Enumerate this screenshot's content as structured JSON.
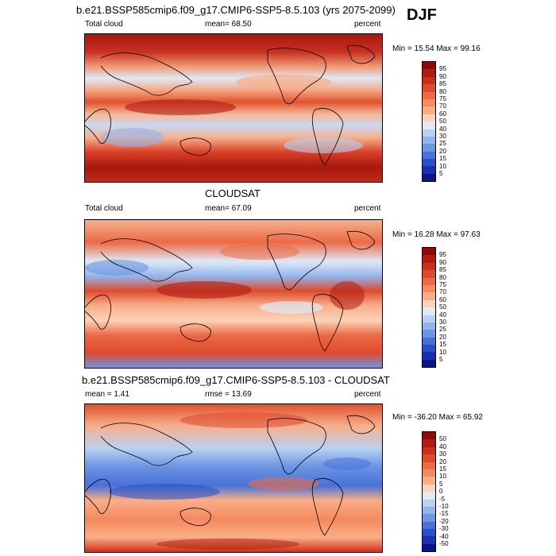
{
  "season": "DJF",
  "panels": [
    {
      "title": "b.e21.BSSP585cmip6.f09_g17.CMIP6-SSP5-8.5.103 (yrs 2075-2099)",
      "left_label": "Total cloud",
      "mean_label": "mean=  68.50",
      "units": "percent",
      "minmax": "Min =  15.54 Max =  99.16",
      "cbar_labels": [
        "95",
        "90",
        "85",
        "80",
        "75",
        "70",
        "60",
        "50",
        "40",
        "30",
        "25",
        "20",
        "15",
        "10",
        "5"
      ],
      "cbar_colors": [
        "#8e0a0a",
        "#b01b10",
        "#cb2f1d",
        "#dd4b2d",
        "#ec6a45",
        "#f5895f",
        "#f9ae88",
        "#fbd3b8",
        "#dfe9f7",
        "#b8d1f1",
        "#93b5ec",
        "#6c95e3",
        "#4872d8",
        "#2a4ec8",
        "#1c2fb0",
        "#0c148c"
      ]
    },
    {
      "title": "CLOUDSAT",
      "left_label": "Total cloud",
      "mean_label": "mean=  67.09",
      "units": "percent",
      "minmax": "Min =  16.28 Max =  97.63",
      "cbar_labels": [
        "95",
        "90",
        "85",
        "80",
        "75",
        "70",
        "60",
        "50",
        "40",
        "30",
        "25",
        "20",
        "15",
        "10",
        "5"
      ],
      "cbar_colors": [
        "#8e0a0a",
        "#b01b10",
        "#cb2f1d",
        "#dd4b2d",
        "#ec6a45",
        "#f5895f",
        "#f9ae88",
        "#fbd3b8",
        "#dfe9f7",
        "#b8d1f1",
        "#93b5ec",
        "#6c95e3",
        "#4872d8",
        "#2a4ec8",
        "#1c2fb0",
        "#0c148c"
      ]
    },
    {
      "title": "b.e21.BSSP585cmip6.f09_g17.CMIP6-SSP5-8.5.103 - CLOUDSAT",
      "left_label": "mean =   1.41",
      "mean_label": "rmse =  13.69",
      "units": "percent",
      "minmax": "Min = -36.20 Max =  65.92",
      "cbar_labels": [
        "50",
        "40",
        "30",
        "20",
        "15",
        "10",
        "5",
        "0",
        "-5",
        "-10",
        "-15",
        "-20",
        "-30",
        "-40",
        "-50"
      ],
      "cbar_colors": [
        "#8e0a0a",
        "#b01b10",
        "#cb2f1d",
        "#dd4b2d",
        "#ec6a45",
        "#f5895f",
        "#f9ae88",
        "#fbd3b8",
        "#dfe9f7",
        "#b8d1f1",
        "#93b5ec",
        "#6c95e3",
        "#4872d8",
        "#2a4ec8",
        "#1c2fb0",
        "#0c148c"
      ]
    }
  ]
}
